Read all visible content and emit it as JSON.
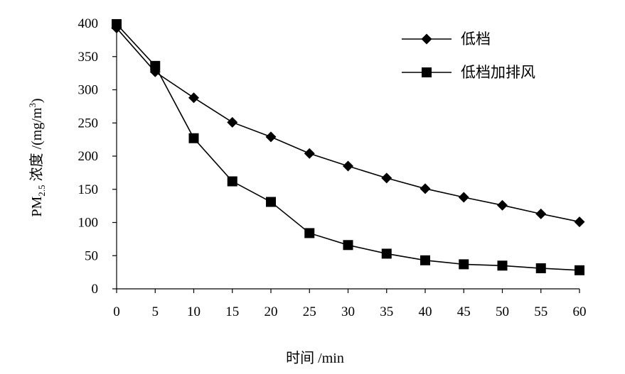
{
  "chart_data": {
    "type": "line",
    "xlabel": "时间 /min",
    "ylabel": {
      "prefix": "PM",
      "sub": "2.5",
      "middle": " 浓度 /(mg/m",
      "sup": "3",
      "suffix": ")"
    },
    "x": [
      0,
      5,
      10,
      15,
      20,
      25,
      30,
      35,
      40,
      45,
      50,
      55,
      60
    ],
    "xlim": [
      0,
      60
    ],
    "ylim": [
      0,
      400
    ],
    "xticks": [
      "0",
      "5",
      "10",
      "15",
      "20",
      "25",
      "30",
      "35",
      "40",
      "45",
      "50",
      "55",
      "60"
    ],
    "yticks": [
      "0",
      "50",
      "100",
      "150",
      "200",
      "250",
      "300",
      "350",
      "400"
    ],
    "grid": false,
    "legend_position": "top-right",
    "series": [
      {
        "name": "低档",
        "marker": "diamond",
        "color": "#000000",
        "values": [
          393,
          327,
          288,
          251,
          229,
          204,
          185,
          167,
          151,
          138,
          126,
          113,
          101
        ]
      },
      {
        "name": "低档加排风",
        "marker": "square",
        "color": "#000000",
        "values": [
          399,
          336,
          227,
          162,
          131,
          84,
          66,
          53,
          43,
          37,
          35,
          31,
          28
        ]
      }
    ]
  }
}
